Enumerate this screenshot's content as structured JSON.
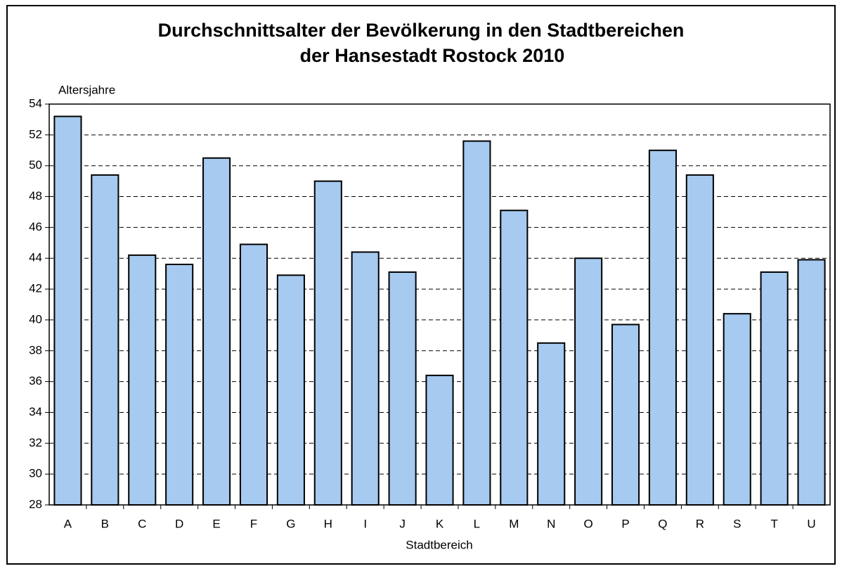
{
  "chart_data": {
    "type": "bar",
    "title": [
      "Durchschnittsalter der Bevölkerung in den Stadtbereichen",
      "der Hansestadt Rostock 2010"
    ],
    "y_label": "Altersjahre",
    "x_label": "Stadtbereich",
    "categories": [
      "A",
      "B",
      "C",
      "D",
      "E",
      "F",
      "G",
      "H",
      "I",
      "J",
      "K",
      "L",
      "M",
      "N",
      "O",
      "P",
      "Q",
      "R",
      "S",
      "T",
      "U"
    ],
    "values": [
      53.2,
      49.4,
      44.2,
      43.6,
      50.5,
      44.9,
      42.9,
      49.0,
      44.4,
      43.1,
      36.4,
      51.6,
      47.1,
      38.5,
      44.0,
      39.7,
      51.0,
      49.4,
      40.4,
      43.1,
      43.9
    ],
    "color": "#a6caf0",
    "ylim": [
      28,
      54
    ],
    "yticks": [
      28,
      30,
      32,
      34,
      36,
      38,
      40,
      42,
      44,
      46,
      48,
      50,
      52,
      54
    ],
    "grid": true
  }
}
